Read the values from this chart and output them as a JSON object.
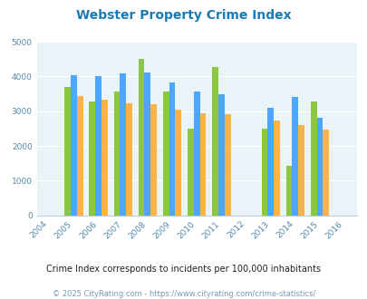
{
  "title": "Webster Property Crime Index",
  "all_years": [
    2004,
    2005,
    2006,
    2007,
    2008,
    2009,
    2010,
    2011,
    2012,
    2013,
    2014,
    2015,
    2016
  ],
  "data_years": [
    2005,
    2006,
    2007,
    2008,
    2009,
    2010,
    2011,
    2013,
    2014,
    2015
  ],
  "webster": [
    3700,
    3280,
    3560,
    4500,
    3560,
    2510,
    4280,
    2510,
    1420,
    3280
  ],
  "florida": [
    4030,
    4000,
    4080,
    4130,
    3840,
    3570,
    3500,
    3110,
    3400,
    2800
  ],
  "national": [
    3440,
    3340,
    3230,
    3210,
    3040,
    2950,
    2920,
    2730,
    2610,
    2480
  ],
  "color_webster": "#8dc63f",
  "color_florida": "#4da6ff",
  "color_national": "#ffb347",
  "ylim": [
    0,
    5000
  ],
  "yticks": [
    0,
    1000,
    2000,
    3000,
    4000,
    5000
  ],
  "bg_color": "#e8f4f8",
  "subtitle": "Crime Index corresponds to incidents per 100,000 inhabitants",
  "footer": "© 2025 CityRating.com - https://www.cityrating.com/crime-statistics/",
  "title_color": "#1a7ab5",
  "subtitle_color": "#222222",
  "footer_color": "#7a9ab5",
  "bar_width": 0.25
}
